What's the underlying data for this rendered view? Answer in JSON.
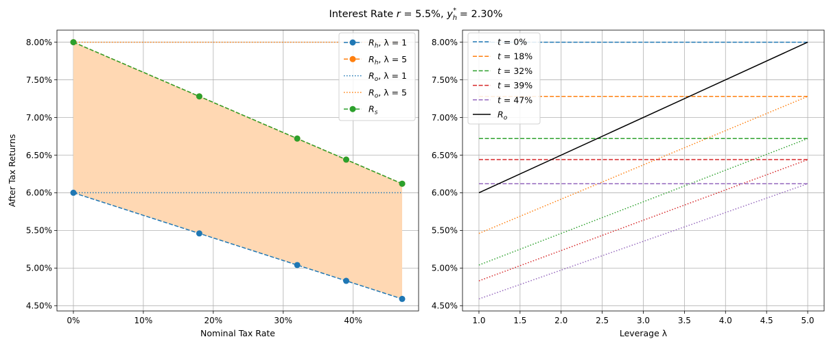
{
  "suptitle": {
    "prefix": "Interest Rate ",
    "r_symbol": "r",
    "r_text": " = 5.5%, ",
    "y_symbol": "y",
    "y_sub": "h",
    "y_sup": "*",
    "y_text": " = 2.30%"
  },
  "chart_data": [
    {
      "type": "line",
      "xlabel": "Nominal Tax Rate",
      "ylabel": "After Tax Returns",
      "xlim": [
        -0.0235,
        0.4935
      ],
      "ylim": [
        0.0443,
        0.0816
      ],
      "xticks": [
        0,
        0.1,
        0.2,
        0.3,
        0.4
      ],
      "xtick_labels": [
        "0%",
        "10%",
        "20%",
        "30%",
        "40%"
      ],
      "yticks": [
        0.045,
        0.05,
        0.055,
        0.06,
        0.065,
        0.07,
        0.075,
        0.08
      ],
      "ytick_labels": [
        "4.50%",
        "5.00%",
        "5.50%",
        "6.00%",
        "6.50%",
        "7.00%",
        "7.50%",
        "8.00%"
      ],
      "grid": true,
      "legend_position": "top-right",
      "x": [
        0,
        0.18,
        0.32,
        0.39,
        0.47
      ],
      "series": [
        {
          "name": "R_h, λ = 1",
          "label_main": "R",
          "label_sub": "h",
          "label_rest": ", λ = 1",
          "color": "#1f77b4",
          "style": "dashed",
          "marker": true,
          "values": [
            0.06,
            0.0546,
            0.0504,
            0.0483,
            0.0459
          ]
        },
        {
          "name": "R_h, λ = 5",
          "label_main": "R",
          "label_sub": "h",
          "label_rest": ", λ = 5",
          "color": "#ff7f0e",
          "style": "dashed",
          "marker": true,
          "values": [
            0.08,
            0.0728,
            0.0672,
            0.0644,
            0.0612
          ]
        },
        {
          "name": "R_o, λ = 1",
          "label_main": "R",
          "label_sub": "o",
          "label_rest": ", λ = 1",
          "color": "#1f77b4",
          "style": "dotted",
          "marker": false,
          "values": [
            0.06,
            0.06,
            0.06,
            0.06,
            0.06
          ]
        },
        {
          "name": "R_o, λ = 5",
          "label_main": "R",
          "label_sub": "o",
          "label_rest": ", λ = 5",
          "color": "#ff7f0e",
          "style": "dotted",
          "marker": false,
          "values": [
            0.08,
            0.08,
            0.08,
            0.08,
            0.08
          ]
        },
        {
          "name": "R_s",
          "label_main": "R",
          "label_sub": "s",
          "label_rest": "",
          "color": "#2ca02c",
          "style": "dashed",
          "marker": true,
          "values": [
            0.08,
            0.0728,
            0.0672,
            0.0644,
            0.0612
          ]
        }
      ],
      "fill_between": {
        "lower_series": 0,
        "upper_series": 1,
        "color": "#ffd8b3"
      }
    },
    {
      "type": "line",
      "xlabel": "Leverage λ",
      "ylabel": "",
      "xlim": [
        0.8,
        5.2
      ],
      "ylim": [
        0.0443,
        0.0816
      ],
      "xticks": [
        1,
        1.5,
        2,
        2.5,
        3,
        3.5,
        4,
        4.5,
        5
      ],
      "xtick_labels": [
        "1.0",
        "1.5",
        "2.0",
        "2.5",
        "3.0",
        "3.5",
        "4.0",
        "4.5",
        "5.0"
      ],
      "yticks": [
        0.045,
        0.05,
        0.055,
        0.06,
        0.065,
        0.07,
        0.075,
        0.08
      ],
      "ytick_labels": [
        "4.50%",
        "5.00%",
        "5.50%",
        "6.00%",
        "6.50%",
        "7.00%",
        "7.50%",
        "8.00%"
      ],
      "grid": true,
      "legend_position": "top-left",
      "series": [
        {
          "name": "t = 0%",
          "label_main": "t",
          "label_sub": "",
          "label_rest": " = 0%",
          "color": "#1f77b4",
          "style": "dashed",
          "x": [
            1,
            5
          ],
          "values": [
            0.08,
            0.08
          ]
        },
        {
          "name": "t = 18%",
          "label_main": "t",
          "label_sub": "",
          "label_rest": " = 18%",
          "color": "#ff7f0e",
          "style": "dashed",
          "x": [
            1,
            5
          ],
          "values": [
            0.0728,
            0.0728
          ]
        },
        {
          "name": "t = 32%",
          "label_main": "t",
          "label_sub": "",
          "label_rest": " = 32%",
          "color": "#2ca02c",
          "style": "dashed",
          "x": [
            1,
            5
          ],
          "values": [
            0.0672,
            0.0672
          ]
        },
        {
          "name": "t = 39%",
          "label_main": "t",
          "label_sub": "",
          "label_rest": " = 39%",
          "color": "#d62728",
          "style": "dashed",
          "x": [
            1,
            5
          ],
          "values": [
            0.0644,
            0.0644
          ]
        },
        {
          "name": "t = 47%",
          "label_main": "t",
          "label_sub": "",
          "label_rest": " = 47%",
          "color": "#9467bd",
          "style": "dashed",
          "x": [
            1,
            5
          ],
          "values": [
            0.0612,
            0.0612
          ]
        },
        {
          "name": "R_o",
          "label_main": "R",
          "label_sub": "o",
          "label_rest": "",
          "color": "#000000",
          "style": "solid",
          "x": [
            1,
            5
          ],
          "values": [
            0.06,
            0.08
          ]
        }
      ],
      "unlabeled_series": [
        {
          "color": "#ff7f0e",
          "style": "dotted",
          "x": [
            1,
            5
          ],
          "values": [
            0.0546,
            0.0728
          ]
        },
        {
          "color": "#2ca02c",
          "style": "dotted",
          "x": [
            1,
            5
          ],
          "values": [
            0.0504,
            0.0672
          ]
        },
        {
          "color": "#d62728",
          "style": "dotted",
          "x": [
            1,
            5
          ],
          "values": [
            0.0483,
            0.0644
          ]
        },
        {
          "color": "#9467bd",
          "style": "dotted",
          "x": [
            1,
            5
          ],
          "values": [
            0.0459,
            0.0612
          ]
        }
      ]
    }
  ]
}
